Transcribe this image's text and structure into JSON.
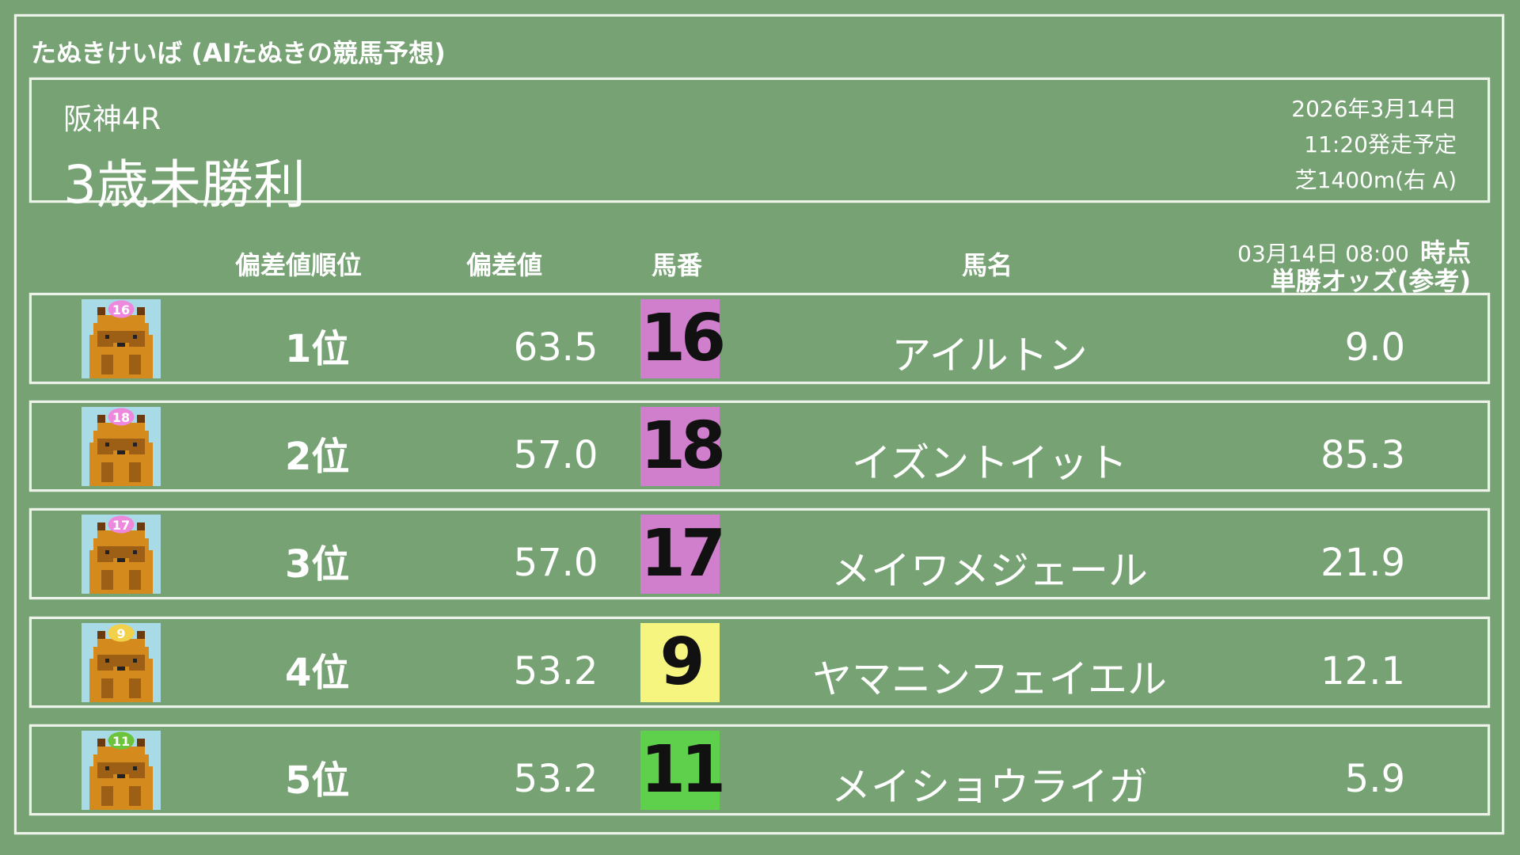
{
  "app_title": "たぬきけいば (AIたぬきの競馬予想)",
  "race": {
    "venue": "阪神4R",
    "name": "3歳未勝利",
    "date": "2026年3月14日",
    "start": "11:20発走予定",
    "course": "芝1400m(右 A)"
  },
  "columns": {
    "rank": "偏差値順位",
    "deviation": "偏差値",
    "number": "馬番",
    "name": "馬名",
    "odds_time": "03月14日 08:00",
    "odds_time_suffix": "時点",
    "odds": "単勝オッズ(参考)"
  },
  "rows": [
    {
      "rank": "1位",
      "deviation": "63.5",
      "number": "16",
      "name": "アイルトン",
      "odds": "9.0",
      "color": "#d07fcc",
      "cap_color": "#ee88dd"
    },
    {
      "rank": "2位",
      "deviation": "57.0",
      "number": "18",
      "name": "イズントイット",
      "odds": "85.3",
      "color": "#d07fcc",
      "cap_color": "#ee88dd"
    },
    {
      "rank": "3位",
      "deviation": "57.0",
      "number": "17",
      "name": "メイワメジェール",
      "odds": "21.9",
      "color": "#d07fcc",
      "cap_color": "#ee88dd"
    },
    {
      "rank": "4位",
      "deviation": "53.2",
      "number": "9",
      "name": "ヤマニンフェイエル",
      "odds": "12.1",
      "color": "#f6f580",
      "cap_color": "#f2d04a"
    },
    {
      "rank": "5位",
      "deviation": "53.2",
      "number": "11",
      "name": "メイショウライガ",
      "odds": "5.9",
      "color": "#5fd04c",
      "cap_color": "#6cc43c"
    }
  ],
  "colors": {
    "background": "#76a274",
    "chalk": "#eef3ea"
  }
}
